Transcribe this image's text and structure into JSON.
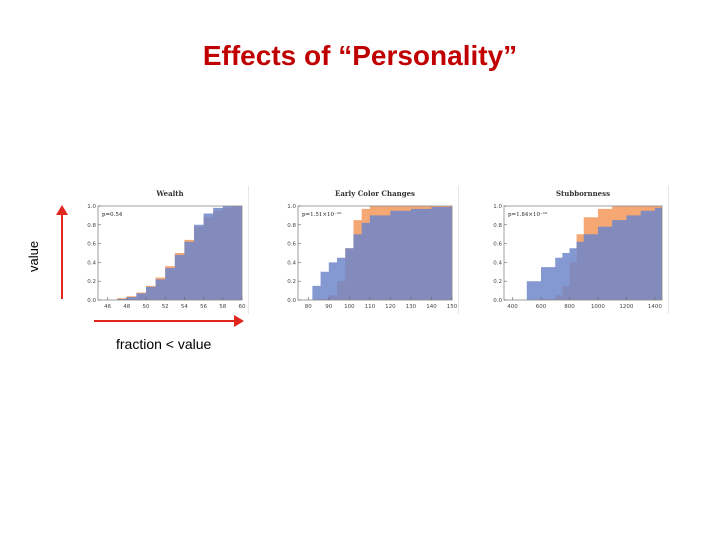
{
  "slide": {
    "title": "Effects of “Personality”",
    "y_annotation": "value",
    "x_annotation": "fraction < value"
  },
  "colors": {
    "orange": "#f4a36d",
    "blue": "#6f86c9",
    "overlap": "#7b6e9b",
    "annotation": "#e0261d"
  },
  "chart_data": [
    {
      "type": "area",
      "title": "Wealth",
      "annotation": "p=0.54",
      "xlim": [
        45,
        60
      ],
      "ylim": [
        0,
        1.0
      ],
      "xticks": [
        "46",
        "48",
        "50",
        "52",
        "54",
        "56",
        "58",
        "60"
      ],
      "yticks": [
        "0.0",
        "0.2",
        "0.4",
        "0.6",
        "0.8",
        "1.0"
      ],
      "series": [
        {
          "color": "orange",
          "x": [
            45.5,
            47,
            48,
            49,
            50,
            51,
            52,
            53,
            54,
            55,
            56,
            57,
            58,
            59,
            60
          ],
          "values": [
            0.0,
            0.02,
            0.04,
            0.08,
            0.15,
            0.24,
            0.36,
            0.5,
            0.64,
            0.78,
            0.88,
            0.95,
            0.98,
            1.0,
            1.0
          ]
        },
        {
          "color": "blue",
          "x": [
            45.5,
            47,
            48,
            49,
            50,
            51,
            52,
            53,
            54,
            55,
            56,
            57,
            58,
            59,
            60
          ],
          "values": [
            0.0,
            0.01,
            0.03,
            0.07,
            0.14,
            0.22,
            0.34,
            0.48,
            0.62,
            0.8,
            0.92,
            0.98,
            1.0,
            1.0,
            1.0
          ]
        }
      ]
    },
    {
      "type": "area",
      "title": "Early Color Changes",
      "annotation": "p=1.51×10⁻¹⁰",
      "xlim": [
        75,
        150
      ],
      "ylim": [
        0,
        1.0
      ],
      "xticks": [
        "80",
        "90",
        "100",
        "110",
        "120",
        "130",
        "140",
        "150"
      ],
      "yticks": [
        "0.0",
        "0.2",
        "0.4",
        "0.6",
        "0.8",
        "1.0"
      ],
      "series": [
        {
          "color": "orange",
          "x": [
            78,
            82,
            86,
            90,
            94,
            98,
            102,
            106,
            110,
            120,
            130,
            140,
            150
          ],
          "values": [
            0.0,
            0.0,
            0.01,
            0.05,
            0.2,
            0.55,
            0.85,
            0.97,
            1.0,
            1.0,
            1.0,
            1.0,
            1.0
          ]
        },
        {
          "color": "blue",
          "x": [
            78,
            82,
            86,
            90,
            94,
            98,
            102,
            106,
            110,
            120,
            130,
            140,
            150
          ],
          "values": [
            0.0,
            0.15,
            0.3,
            0.4,
            0.45,
            0.55,
            0.7,
            0.82,
            0.9,
            0.95,
            0.97,
            0.99,
            1.0
          ]
        }
      ]
    },
    {
      "type": "area",
      "title": "Stubbornness",
      "annotation": "p=1.84×10⁻¹⁰",
      "xlim": [
        340,
        1450
      ],
      "ylim": [
        0,
        1.0
      ],
      "xticks": [
        "400",
        "600",
        "800",
        "1000",
        "1200",
        "1400"
      ],
      "yticks": [
        "0.0",
        "0.2",
        "0.4",
        "0.6",
        "0.8",
        "1.0"
      ],
      "series": [
        {
          "color": "orange",
          "x": [
            400,
            500,
            600,
            700,
            750,
            800,
            850,
            900,
            1000,
            1100,
            1200,
            1300,
            1400,
            1450
          ],
          "values": [
            0.0,
            0.0,
            0.01,
            0.05,
            0.15,
            0.4,
            0.7,
            0.88,
            0.97,
            1.0,
            1.0,
            1.0,
            1.0,
            1.0
          ]
        },
        {
          "color": "blue",
          "x": [
            400,
            500,
            600,
            700,
            750,
            800,
            850,
            900,
            1000,
            1100,
            1200,
            1300,
            1400,
            1450
          ],
          "values": [
            0.0,
            0.2,
            0.35,
            0.45,
            0.5,
            0.55,
            0.62,
            0.7,
            0.78,
            0.85,
            0.9,
            0.95,
            0.98,
            1.0
          ]
        }
      ]
    }
  ]
}
